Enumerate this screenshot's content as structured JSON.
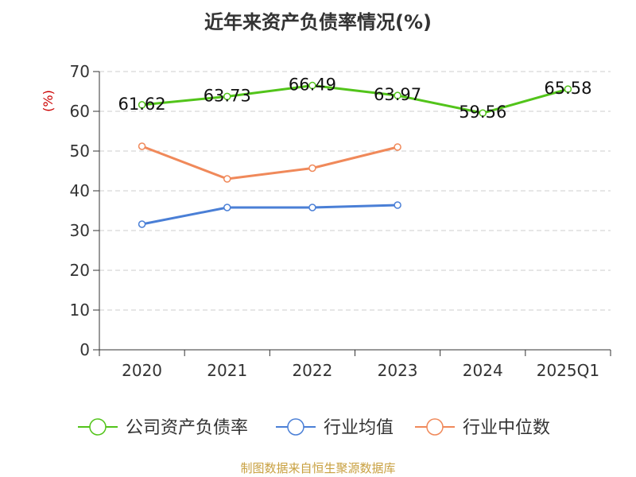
{
  "chart_data": {
    "type": "line",
    "title": "近年来资产负债率情况(%)",
    "ylabel": "(%)",
    "xlabel": "",
    "categories": [
      "2020",
      "2021",
      "2022",
      "2023",
      "2024",
      "2025Q1"
    ],
    "ylim": [
      0,
      70
    ],
    "yticks": [
      0,
      10,
      20,
      30,
      40,
      50,
      60,
      70
    ],
    "grid": true,
    "legend_position": "bottom",
    "series": [
      {
        "name": "公司资产负债率",
        "color": "#52c41a",
        "values": [
          61.62,
          63.73,
          66.49,
          63.97,
          59.56,
          65.58
        ],
        "labels": [
          "61.62",
          "63.73",
          "66.49",
          "63.97",
          "59.56",
          "65.58"
        ]
      },
      {
        "name": "行业均值",
        "color": "#4a7fd6",
        "values": [
          31.6,
          35.8,
          35.8,
          36.4,
          null,
          null
        ]
      },
      {
        "name": "行业中位数",
        "color": "#f0895a",
        "values": [
          51.2,
          43.0,
          45.7,
          51.0,
          null,
          null
        ]
      }
    ]
  },
  "footer": "制图数据来自恒生聚源数据库"
}
